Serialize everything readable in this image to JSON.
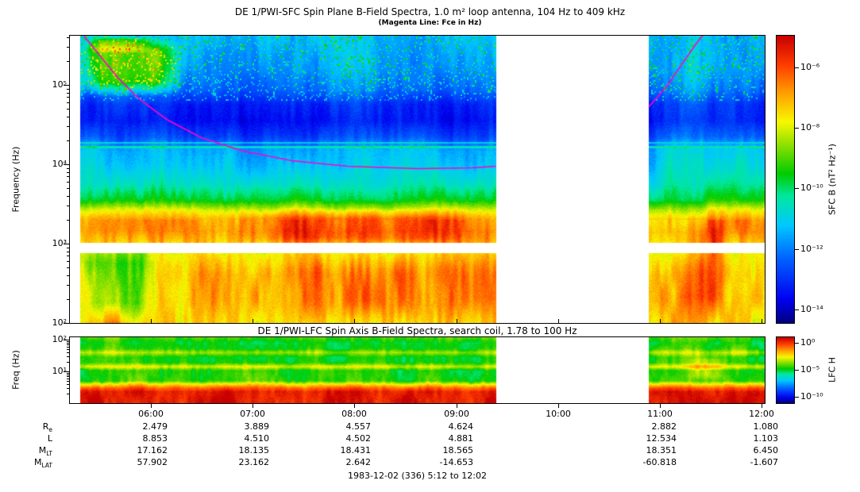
{
  "page": {
    "footer": "1983-12-02 (336) 5:12 to 12:02"
  },
  "sfc": {
    "title": "DE 1/PWI-SFC  Spin Plane B-Field Spectra, 1.0 m² loop antenna, 104 Hz to 409 kHz",
    "subtitle": "(Magenta Line: Fce in Hz)",
    "ylabel": "Frequency (Hz)",
    "yticks": [
      "10⁵",
      "10⁴",
      "10³",
      "10²"
    ],
    "colorbar_label": "SFC B (nT² Hz⁻¹)",
    "colorbar_ticks": [
      "10⁻⁶",
      "10⁻⁸",
      "10⁻¹⁰",
      "10⁻¹²",
      "10⁻¹⁴"
    ]
  },
  "lfc": {
    "title": "DE 1/PWI-LFC  Spin Axis B-Field Spectra, search coil, 1.78 to 100 Hz",
    "ylabel": "Freq (Hz)",
    "yticks": [
      "10²",
      "10¹"
    ],
    "colorbar_label": "LFC H",
    "colorbar_ticks": [
      "10⁰",
      "10⁻⁵",
      "10⁻¹⁰"
    ]
  },
  "xaxis": {
    "ticks": [
      "06:00",
      "07:00",
      "08:00",
      "09:00",
      "10:00",
      "11:00",
      "12:00"
    ]
  },
  "ephemeris": {
    "rows": [
      {
        "label": "R",
        "sub": "e",
        "values": [
          "2.479",
          "3.889",
          "4.557",
          "4.624",
          "",
          "2.882",
          "1.080"
        ]
      },
      {
        "label": "L",
        "sub": "",
        "values": [
          "8.853",
          "4.510",
          "4.502",
          "4.881",
          "",
          "12.534",
          "1.103"
        ]
      },
      {
        "label": "M",
        "sub": "LT",
        "values": [
          "17.162",
          "18.135",
          "18.431",
          "18.565",
          "",
          "18.351",
          "6.450"
        ]
      },
      {
        "label": "M",
        "sub": "LAT",
        "values": [
          "57.902",
          "23.162",
          "2.642",
          "-14.653",
          "",
          "-60.818",
          "-1.607"
        ]
      }
    ]
  },
  "chart_data": [
    {
      "type": "heatmap",
      "name": "SFC spin-plane B-field spectrogram",
      "title": "DE 1/PWI-SFC  Spin Plane B-Field Spectra, 1.0 m² loop antenna, 104 Hz to 409 kHz",
      "x_start": "1983-12-02 05:12",
      "x_end": "1983-12-02 12:02",
      "x_tick_labels": [
        "06:00",
        "07:00",
        "08:00",
        "09:00",
        "10:00",
        "11:00",
        "12:00"
      ],
      "y_label": "Frequency (Hz)",
      "y_scale": "log",
      "y_min_hz": 104,
      "y_max_hz": 409000,
      "z_label": "SFC B (nT² Hz⁻¹)",
      "z_scale": "log",
      "z_min": 1e-15,
      "z_max": 1e-05,
      "level_range_log10": [
        -15,
        -5
      ],
      "legend_position": "right-colorbar",
      "grid": false,
      "data_gaps": [
        {
          "t0": 0.0,
          "t1": 0.014
        },
        {
          "t0": 0.614,
          "t1": 0.834
        }
      ],
      "blank_band_loghz": [
        2.88,
        3.01
      ],
      "freq_profile_loghz_logpower": [
        [
          2.0,
          -7.4
        ],
        [
          2.3,
          -7.1
        ],
        [
          2.6,
          -7.2
        ],
        [
          2.88,
          -7.8
        ],
        [
          3.02,
          -7.3
        ],
        [
          3.15,
          -6.9
        ],
        [
          3.3,
          -7.1
        ],
        [
          3.42,
          -8.2
        ],
        [
          3.55,
          -10.0
        ],
        [
          3.75,
          -11.0
        ],
        [
          4.0,
          -11.6
        ],
        [
          4.18,
          -11.9
        ],
        [
          4.35,
          -13.2
        ],
        [
          4.55,
          -13.9
        ],
        [
          4.75,
          -13.6
        ],
        [
          4.95,
          -12.6
        ],
        [
          5.2,
          -12.1
        ],
        [
          5.62,
          -11.8
        ]
      ],
      "features": [
        {
          "type": "blob",
          "t": [
            0.0,
            0.17
          ],
          "lf": [
            4.85,
            5.62
          ],
          "boost": 2.6
        },
        {
          "type": "blob",
          "t": [
            0.02,
            0.12
          ],
          "lf": [
            5.4,
            5.62
          ],
          "boost": 1.4
        },
        {
          "type": "blob",
          "t": [
            0.0,
            0.13
          ],
          "lf": [
            2.0,
            3.0
          ],
          "boost": -1.6
        },
        {
          "type": "blob",
          "t": [
            0.22,
            0.614
          ],
          "lf": [
            2.95,
            3.45
          ],
          "boost": 0.9
        },
        {
          "type": "blob",
          "t": [
            0.25,
            0.6
          ],
          "lf": [
            2.0,
            2.9
          ],
          "boost": 0.5
        },
        {
          "type": "blob",
          "t": [
            0.875,
            0.945
          ],
          "lf": [
            2.0,
            3.35
          ],
          "boost": 1.2
        },
        {
          "type": "blob",
          "t": [
            0.834,
            1.0
          ],
          "lf": [
            3.5,
            5.62
          ],
          "boost": 0.5
        },
        {
          "type": "hline",
          "lf": 4.215,
          "halfwidth": 0.015,
          "level": -10.8
        },
        {
          "type": "hline",
          "lf": 4.27,
          "halfwidth": 0.009,
          "level": -11.4
        },
        {
          "type": "stripes",
          "lf": [
            3.3,
            5.62
          ],
          "amp": 0.55
        },
        {
          "type": "stripes",
          "lf": [
            2.0,
            3.3
          ],
          "amp": 0.9
        },
        {
          "type": "speckle",
          "lf": [
            4.8,
            5.62
          ],
          "prob": 0.13,
          "boost": 1.8
        }
      ],
      "fce_line": {
        "color": "#ff00cc",
        "label": "Fce in Hz",
        "left": [
          [
            0.02,
            5.62
          ],
          [
            0.045,
            5.35
          ],
          [
            0.07,
            5.08
          ],
          [
            0.1,
            4.82
          ],
          [
            0.14,
            4.56
          ],
          [
            0.19,
            4.33
          ],
          [
            0.25,
            4.16
          ],
          [
            0.32,
            4.04
          ],
          [
            0.4,
            3.97
          ],
          [
            0.5,
            3.94
          ],
          [
            0.58,
            3.95
          ],
          [
            0.614,
            3.97
          ]
        ],
        "right": [
          [
            0.834,
            4.72
          ],
          [
            0.86,
            4.98
          ],
          [
            0.885,
            5.3
          ],
          [
            0.905,
            5.55
          ],
          [
            0.912,
            5.62
          ]
        ]
      },
      "colormap": [
        [
          0.0,
          "#000080"
        ],
        [
          0.08,
          "#0000f0"
        ],
        [
          0.22,
          "#0060ff"
        ],
        [
          0.34,
          "#00c8ff"
        ],
        [
          0.44,
          "#00e8a0"
        ],
        [
          0.52,
          "#00cc00"
        ],
        [
          0.62,
          "#8ee000"
        ],
        [
          0.7,
          "#f8f800"
        ],
        [
          0.8,
          "#ffa000"
        ],
        [
          0.9,
          "#ff3c00"
        ],
        [
          1.0,
          "#c80000"
        ]
      ]
    },
    {
      "type": "heatmap",
      "name": "LFC spin-axis B-field spectrogram",
      "title": "DE 1/PWI-LFC  Spin Axis B-Field Spectra, search coil, 1.78 to 100 Hz",
      "y_label": "Freq (Hz)",
      "y_scale": "log",
      "y_min_hz": 1.78,
      "y_max_hz": 100,
      "z_label": "LFC H",
      "z_scale": "log",
      "z_min": 1e-11,
      "z_max": 1,
      "level_range_log10": [
        -11,
        0
      ],
      "data_gaps": [
        {
          "t0": 0.0,
          "t1": 0.014
        },
        {
          "t0": 0.614,
          "t1": 0.834
        }
      ],
      "freq_profile_loghz_logpower": [
        [
          0.0,
          -0.4
        ],
        [
          0.35,
          -0.5
        ],
        [
          0.48,
          -1.6
        ],
        [
          0.58,
          -3.0
        ],
        [
          0.7,
          -5.0
        ],
        [
          1.02,
          -5.2
        ],
        [
          1.15,
          -3.4
        ],
        [
          1.28,
          -5.1
        ],
        [
          1.45,
          -5.2
        ],
        [
          1.6,
          -3.8
        ],
        [
          1.72,
          -5.0
        ],
        [
          1.9,
          -5.3
        ],
        [
          2.08,
          -4.6
        ]
      ],
      "features": [
        {
          "type": "stripes",
          "lf": [
            0.0,
            2.08
          ],
          "amp": 0.7
        },
        {
          "type": "blob",
          "t": [
            0.88,
            0.95
          ],
          "lf": [
            0.6,
            1.6
          ],
          "boost": 1.2
        }
      ]
    }
  ]
}
